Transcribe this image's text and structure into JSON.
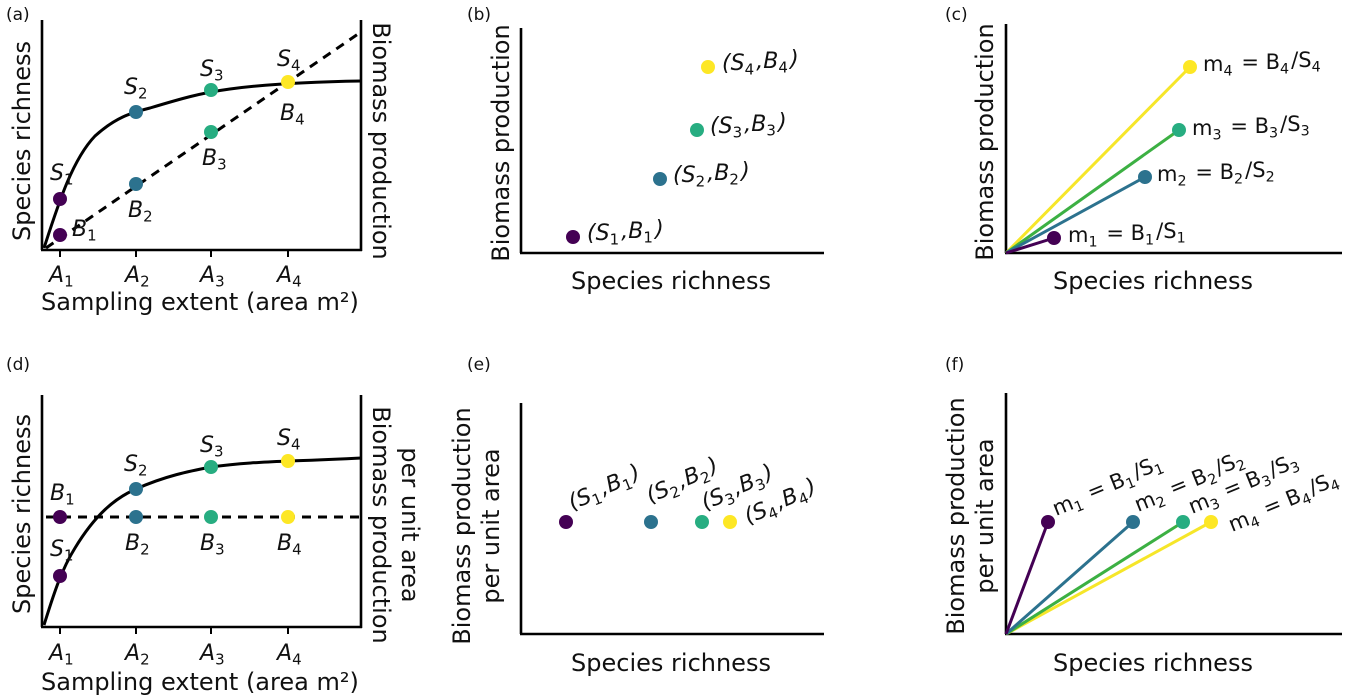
{
  "colors": {
    "purple": "#440154",
    "blue": "#2c728e",
    "green": "#27ad81",
    "yellow": "#fde725",
    "green_line": "#3cb043",
    "yellow_line": "#f6e629",
    "axis": "#000000"
  },
  "panels": {
    "a": {
      "letter": "(a)",
      "ylabel": "Species richness",
      "ylabel_right": "Biomass production",
      "xlabel": "Sampling extent (area m²)",
      "x_ticks": [
        "A1",
        "A2",
        "A3",
        "A4"
      ],
      "s_labels": [
        "S1",
        "S2",
        "S3",
        "S4"
      ],
      "b_labels": [
        "B1",
        "B2",
        "B3",
        "B4"
      ]
    },
    "b": {
      "letter": "(b)",
      "ylabel": "Biomass production",
      "xlabel": "Species richness",
      "point_labels": [
        "(S1,B1)",
        "(S2,B2)",
        "(S3,B3)",
        "(S4,B4)"
      ]
    },
    "c": {
      "letter": "(c)",
      "ylabel": "Biomass production",
      "xlabel": "Species richness",
      "slope_labels": [
        "m1 = B1/S1",
        "m2 = B2/S2",
        "m3 = B3/S3",
        "m4 = B4/S4"
      ]
    },
    "d": {
      "letter": "(d)",
      "ylabel": "Species richness",
      "ylabel_right_1": "Biomass production",
      "ylabel_right_2": "per unit area",
      "xlabel": "Sampling extent (area m²)",
      "x_ticks": [
        "A1",
        "A2",
        "A3",
        "A4"
      ],
      "s_labels": [
        "S1",
        "S2",
        "S3",
        "S4"
      ],
      "b_labels": [
        "B1",
        "B2",
        "B3",
        "B4"
      ]
    },
    "e": {
      "letter": "(e)",
      "ylabel_1": "Biomass production",
      "ylabel_2": "per unit area",
      "xlabel": "Species richness",
      "point_labels": [
        "(S1,B1)",
        "(S2,B2)",
        "(S3,B3)",
        "(S4,B4)"
      ]
    },
    "f": {
      "letter": "(f)",
      "ylabel_1": "Biomass production",
      "ylabel_2": "per unit area",
      "xlabel": "Species richness",
      "slope_labels": [
        "m1 = B1/S1",
        "m2 = B2/S2",
        "m3 = B3/S3",
        "m4 = B4/S4"
      ]
    }
  }
}
